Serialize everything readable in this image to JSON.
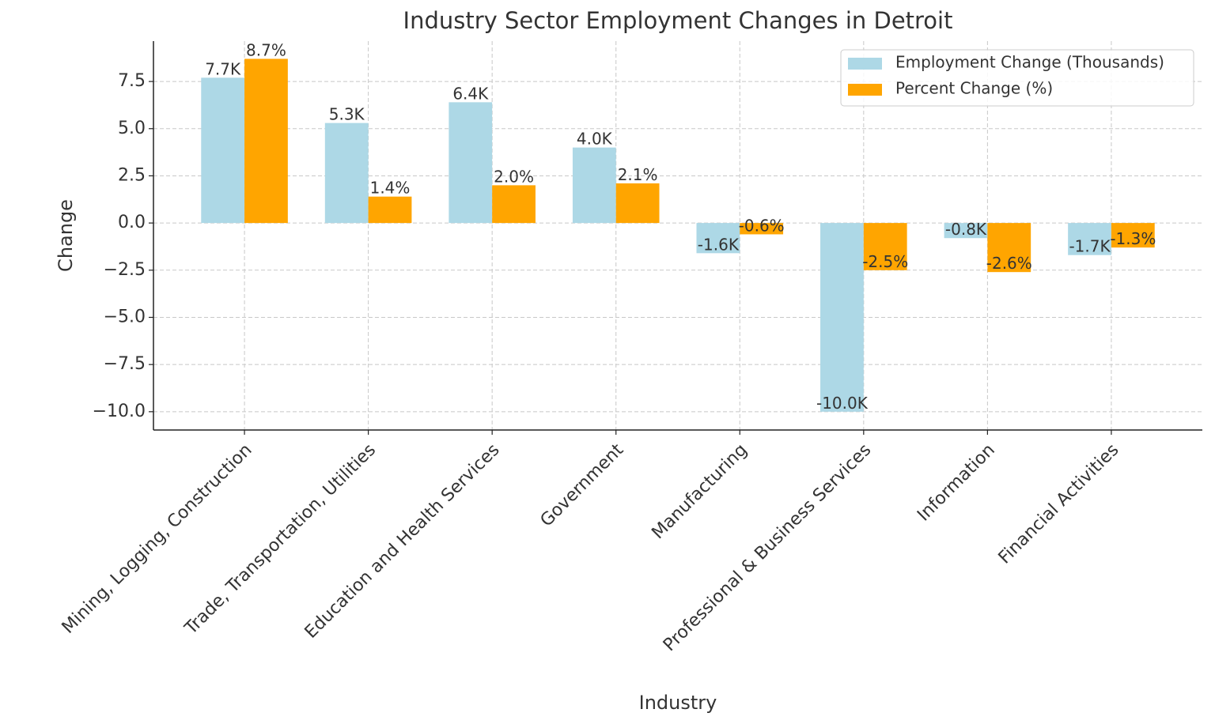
{
  "chart_data": {
    "type": "bar",
    "title": "Industry Sector Employment Changes in Detroit",
    "xlabel": "Industry",
    "ylabel": "Change",
    "categories": [
      "Mining, Logging, Construction",
      "Trade, Transportation, Utilities",
      "Education and Health Services",
      "Government",
      "Manufacturing",
      "Professional & Business Services",
      "Information",
      "Financial Activities"
    ],
    "series": [
      {
        "name": "Employment Change (Thousands)",
        "color": "#add8e6",
        "values": [
          7.7,
          5.3,
          6.4,
          4.0,
          -1.6,
          -10.0,
          -0.8,
          -1.7
        ],
        "value_labels": [
          "7.7K",
          "5.3K",
          "6.4K",
          "4.0K",
          "-1.6K",
          "-10.0K",
          "-0.8K",
          "-1.7K"
        ]
      },
      {
        "name": "Percent Change (%)",
        "color": "#ffa500",
        "values": [
          8.7,
          1.4,
          2.0,
          2.1,
          -0.6,
          -2.5,
          -2.6,
          -1.3
        ],
        "value_labels": [
          "8.7%",
          "1.4%",
          "2.0%",
          "2.1%",
          "-0.6%",
          "-2.5%",
          "-2.6%",
          "-1.3%"
        ]
      }
    ],
    "ylim": [
      -10.97,
      9.64
    ],
    "yticks": [
      {
        "value": -10,
        "label": "−10.0"
      },
      {
        "value": -7.5,
        "label": "−7.5"
      },
      {
        "value": -5,
        "label": "−5.0"
      },
      {
        "value": -2.5,
        "label": "−2.5"
      },
      {
        "value": 0,
        "label": "0.0"
      },
      {
        "value": 2.5,
        "label": "2.5"
      },
      {
        "value": 5,
        "label": "5.0"
      },
      7.5
    ],
    "grid": true,
    "legend": "upper right"
  }
}
